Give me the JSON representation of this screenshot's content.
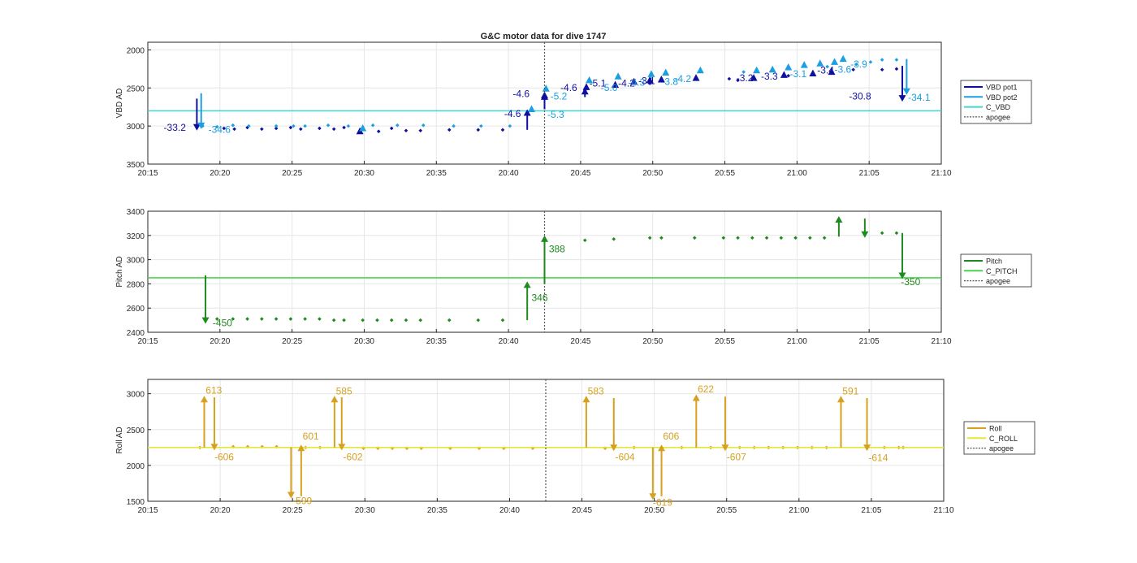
{
  "figure_title": "G&C motor data for dive 1747",
  "colors": {
    "vbd_pot1": "#1010a0",
    "vbd_pot2": "#1a9fe0",
    "c_vbd": "#3fd6d6",
    "pitch": "#1f8a1f",
    "c_pitch": "#4cd44c",
    "roll": "#d6a11e",
    "c_roll": "#e6e63a",
    "apogee": "#555555",
    "grid": "#e6e6e6",
    "axis": "#262626"
  },
  "chart_data": [
    {
      "type": "line",
      "title": "G&C motor data for dive 1747",
      "ylabel": "VBD AD",
      "y_reversed": true,
      "ylim": [
        1900,
        3500
      ],
      "xlim": [
        "20:15",
        "21:10"
      ],
      "y_ticks": [
        2000,
        2500,
        3000,
        3500
      ],
      "x_ticks": [
        "20:15",
        "20:20",
        "20:25",
        "20:30",
        "20:35",
        "20:40",
        "20:45",
        "20:50",
        "20:55",
        "21:00",
        "21:05",
        "21:10"
      ],
      "grid": true,
      "legend_position": "right",
      "legend": [
        "VBD pot1",
        "VBD pot2",
        "C_VBD",
        "apogee"
      ],
      "series": [
        {
          "name": "VBD pot1",
          "x": [
            20.28,
            21.0,
            21.9,
            22.9,
            23.9,
            24.9,
            25.6,
            26.9,
            27.9,
            28.6,
            31.0,
            31.9,
            32.9,
            33.9,
            35.9,
            37.9,
            39.6,
            45.3,
            47.3,
            49.8,
            50.6,
            55.3,
            55.9,
            59.4,
            63.9,
            65.9,
            66.9
          ],
          "y": [
            3030,
            3040,
            3020,
            3040,
            3030,
            3020,
            3040,
            3030,
            3040,
            3020,
            3070,
            3030,
            3060,
            3060,
            3050,
            3050,
            3050,
            2530,
            2480,
            2440,
            2390,
            2380,
            2400,
            2340,
            2260,
            2260,
            2250
          ]
        },
        {
          "name": "VBD pot2",
          "x": [
            18.8,
            19.8,
            20.9,
            22.0,
            23.9,
            25.1,
            25.9,
            27.5,
            28.9,
            30.6,
            32.3,
            34.1,
            36.2,
            38.1,
            40.1,
            56.3,
            62.1,
            64.1,
            65.1,
            65.9,
            66.9
          ],
          "y": [
            3000,
            3010,
            2990,
            3000,
            3000,
            3000,
            3000,
            2990,
            3000,
            2990,
            2990,
            2990,
            3000,
            3000,
            3000,
            2290,
            2220,
            2190,
            2160,
            2130,
            2130
          ]
        },
        {
          "name": "C_VBD",
          "x": [
            15.0,
            70.0
          ],
          "y": [
            2800,
            2800
          ]
        }
      ],
      "triangles_pot1": {
        "x": [
          29.7,
          42.5,
          45.4,
          47.4,
          48.7,
          49.8,
          50.6,
          53.0,
          57.0,
          59.1,
          61.1,
          62.4
        ],
        "y": [
          3070,
          2600,
          2490,
          2460,
          2420,
          2400,
          2390,
          2370,
          2370,
          2330,
          2310,
          2290
        ]
      },
      "triangles_pot2": {
        "x": [
          29.9,
          41.6,
          42.6,
          45.6,
          47.6,
          49.9,
          50.9,
          53.3,
          57.2,
          58.3,
          59.4,
          60.5,
          61.6,
          62.6,
          63.2
        ],
        "y": [
          3030,
          2780,
          2510,
          2400,
          2350,
          2320,
          2300,
          2270,
          2270,
          2260,
          2230,
          2200,
          2180,
          2160,
          2120
        ]
      },
      "arrows": [
        {
          "series": "VBD pot1",
          "x": 18.4,
          "y_from": 2640,
          "y_to": 3060
        },
        {
          "series": "VBD pot2",
          "x": 18.7,
          "y_from": 2570,
          "y_to": 3040
        },
        {
          "series": "VBD pot1",
          "x": 41.3,
          "y_from": 3050,
          "y_to": 2780
        },
        {
          "series": "VBD pot1",
          "x": 42.5,
          "y_from": 2780,
          "y_to": 2570
        },
        {
          "series": "VBD pot1",
          "x": 45.3,
          "y_from": 2620,
          "y_to": 2500
        },
        {
          "series": "VBD pot1",
          "x": 67.3,
          "y_from": 2210,
          "y_to": 2680
        },
        {
          "series": "VBD pot2",
          "x": 67.6,
          "y_from": 2120,
          "y_to": 2590
        }
      ],
      "annotations": [
        {
          "text": "-33.2",
          "series": "VBD pot1",
          "x": 16.1,
          "y": 3060
        },
        {
          "text": "-34.6",
          "series": "VBD pot2",
          "x": 19.2,
          "y": 3090
        },
        {
          "text": "-4.6",
          "series": "VBD pot1",
          "x": 39.7,
          "y": 2880
        },
        {
          "text": "-4.6",
          "series": "VBD pot1",
          "x": 40.3,
          "y": 2620
        },
        {
          "text": "-5.3",
          "series": "VBD pot2",
          "x": 42.7,
          "y": 2890
        },
        {
          "text": "-5.2",
          "series": "VBD pot2",
          "x": 42.9,
          "y": 2650
        },
        {
          "text": "-4.6",
          "series": "VBD pot1",
          "x": 43.6,
          "y": 2540
        },
        {
          "text": "-5.1",
          "series": "VBD pot1",
          "x": 45.6,
          "y": 2480
        },
        {
          "text": "-5.0",
          "series": "VBD pot2",
          "x": 46.4,
          "y": 2540
        },
        {
          "text": "-4.2",
          "series": "VBD pot1",
          "x": 47.6,
          "y": 2480
        },
        {
          "text": "-4.3",
          "series": "VBD pot2",
          "x": 48.3,
          "y": 2470
        },
        {
          "text": "-3.1",
          "series": "VBD pot1",
          "x": 49.0,
          "y": 2450
        },
        {
          "text": "-3.8",
          "series": "VBD pot2",
          "x": 50.6,
          "y": 2460
        },
        {
          "text": "-4.2",
          "series": "VBD pot2",
          "x": 51.5,
          "y": 2420
        },
        {
          "text": "-3.2",
          "series": "VBD pot1",
          "x": 55.8,
          "y": 2410
        },
        {
          "text": "-3.3",
          "series": "VBD pot1",
          "x": 57.5,
          "y": 2390
        },
        {
          "text": "-3.1",
          "series": "VBD pot2",
          "x": 59.5,
          "y": 2360
        },
        {
          "text": "-3.4",
          "series": "VBD pot1",
          "x": 61.4,
          "y": 2310
        },
        {
          "text": "-3.6",
          "series": "VBD pot2",
          "x": 62.6,
          "y": 2300
        },
        {
          "text": "-3.9",
          "series": "VBD pot2",
          "x": 63.7,
          "y": 2230
        },
        {
          "text": "-30.8",
          "series": "VBD pot1",
          "x": 63.6,
          "y": 2650
        },
        {
          "text": "-34.1",
          "series": "VBD pot2",
          "x": 67.7,
          "y": 2670
        }
      ],
      "apogee_x": 42.5
    },
    {
      "type": "line",
      "ylabel": "Pitch AD",
      "ylim": [
        2400,
        3400
      ],
      "xlim": [
        "20:15",
        "21:10"
      ],
      "y_ticks": [
        2400,
        2600,
        2800,
        3000,
        3200,
        3400
      ],
      "x_ticks": [
        "20:15",
        "20:20",
        "20:25",
        "20:30",
        "20:35",
        "20:40",
        "20:45",
        "20:50",
        "20:55",
        "21:00",
        "21:05",
        "21:10"
      ],
      "grid": true,
      "legend_position": "right",
      "legend": [
        "Pitch",
        "C_PITCH",
        "apogee"
      ],
      "series": [
        {
          "name": "Pitch",
          "x": [
            19.8,
            20.9,
            21.9,
            22.9,
            23.9,
            24.9,
            25.9,
            26.9,
            27.9,
            28.6,
            29.9,
            30.9,
            31.9,
            32.9,
            33.9,
            35.9,
            37.9,
            39.6,
            45.3,
            47.3,
            49.8,
            50.6,
            52.9,
            54.9,
            55.9,
            56.9,
            57.9,
            58.9,
            59.9,
            60.9,
            61.9,
            65.9,
            66.9
          ],
          "y": [
            2510,
            2510,
            2510,
            2510,
            2510,
            2510,
            2510,
            2510,
            2500,
            2500,
            2500,
            2500,
            2500,
            2500,
            2500,
            2500,
            2500,
            2500,
            3160,
            3170,
            3180,
            3180,
            3180,
            3180,
            3180,
            3180,
            3180,
            3180,
            3180,
            3180,
            3180,
            3220,
            3220
          ]
        },
        {
          "name": "C_PITCH",
          "x": [
            15.0,
            70.0
          ],
          "y": [
            2850,
            2850
          ]
        }
      ],
      "arrows": [
        {
          "x": 19.0,
          "y_from": 2870,
          "y_to": 2470
        },
        {
          "x": 41.3,
          "y_from": 2500,
          "y_to": 2820
        },
        {
          "x": 42.5,
          "y_from": 2800,
          "y_to": 3200
        },
        {
          "x": 62.9,
          "y_from": 3190,
          "y_to": 3360
        },
        {
          "x": 64.7,
          "y_from": 3340,
          "y_to": 3180
        },
        {
          "x": 67.3,
          "y_from": 3220,
          "y_to": 2840
        }
      ],
      "annotations": [
        {
          "text": "-450",
          "x": 19.5,
          "y": 2450
        },
        {
          "text": "346",
          "x": 41.6,
          "y": 2660
        },
        {
          "text": "388",
          "x": 42.8,
          "y": 3060
        },
        {
          "text": "-350",
          "x": 67.2,
          "y": 2790
        }
      ],
      "apogee_x": 42.5
    },
    {
      "type": "line",
      "ylabel": "Roll AD",
      "ylim": [
        1500,
        3200
      ],
      "xlim": [
        "20:15",
        "21:10"
      ],
      "y_ticks": [
        1500,
        2000,
        2500,
        3000
      ],
      "x_ticks": [
        "20:15",
        "20:20",
        "20:25",
        "20:30",
        "20:35",
        "20:40",
        "20:45",
        "20:50",
        "20:55",
        "21:00",
        "21:05",
        "21:10"
      ],
      "grid": true,
      "legend_position": "right",
      "legend": [
        "Roll",
        "C_ROLL",
        "apogee"
      ],
      "series": [
        {
          "name": "Roll",
          "x": [
            18.6,
            20.9,
            21.9,
            22.9,
            23.9,
            25.9,
            26.9,
            29.9,
            30.9,
            31.9,
            32.9,
            33.9,
            35.9,
            37.9,
            39.6,
            41.6,
            46.6,
            48.6,
            51.9,
            53.9,
            54.9,
            55.9,
            56.9,
            57.9,
            58.9,
            59.9,
            60.9,
            61.9,
            65.9,
            66.9,
            67.2
          ],
          "y": [
            2250,
            2260,
            2260,
            2260,
            2260,
            2250,
            2250,
            2240,
            2240,
            2240,
            2240,
            2240,
            2240,
            2240,
            2240,
            2240,
            2240,
            2250,
            2250,
            2250,
            2250,
            2250,
            2250,
            2250,
            2250,
            2250,
            2250,
            2250,
            2250,
            2250,
            2250
          ]
        },
        {
          "name": "C_ROLL",
          "x": [
            15.0,
            70.0
          ],
          "y": [
            2250,
            2250
          ]
        }
      ],
      "arrows": [
        {
          "x": 18.9,
          "y_from": 2250,
          "y_to": 2970
        },
        {
          "x": 19.6,
          "y_from": 2950,
          "y_to": 2210
        },
        {
          "x": 24.9,
          "y_from": 2250,
          "y_to": 1540
        },
        {
          "x": 25.6,
          "y_from": 1570,
          "y_to": 2290
        },
        {
          "x": 27.9,
          "y_from": 2250,
          "y_to": 2970
        },
        {
          "x": 28.4,
          "y_from": 2950,
          "y_to": 2210
        },
        {
          "x": 45.3,
          "y_from": 2250,
          "y_to": 2970
        },
        {
          "x": 47.2,
          "y_from": 2940,
          "y_to": 2200
        },
        {
          "x": 49.9,
          "y_from": 2250,
          "y_to": 1520
        },
        {
          "x": 50.5,
          "y_from": 1570,
          "y_to": 2290
        },
        {
          "x": 52.9,
          "y_from": 2250,
          "y_to": 2990
        },
        {
          "x": 54.9,
          "y_from": 2960,
          "y_to": 2200
        },
        {
          "x": 62.9,
          "y_from": 2250,
          "y_to": 2970
        },
        {
          "x": 64.7,
          "y_from": 2940,
          "y_to": 2200
        }
      ],
      "annotations": [
        {
          "text": "613",
          "x": 19.0,
          "y": 3000
        },
        {
          "text": "-606",
          "x": 19.6,
          "y": 2070
        },
        {
          "text": "-599",
          "x": 25.0,
          "y": 1460
        },
        {
          "text": "601",
          "x": 25.7,
          "y": 2360
        },
        {
          "text": "585",
          "x": 28.0,
          "y": 2990
        },
        {
          "text": "-602",
          "x": 28.5,
          "y": 2070
        },
        {
          "text": "583",
          "x": 45.4,
          "y": 2990
        },
        {
          "text": "-604",
          "x": 47.3,
          "y": 2070
        },
        {
          "text": "-619",
          "x": 49.9,
          "y": 1440
        },
        {
          "text": "606",
          "x": 50.6,
          "y": 2360
        },
        {
          "text": "622",
          "x": 53.0,
          "y": 3020
        },
        {
          "text": "-607",
          "x": 55.0,
          "y": 2070
        },
        {
          "text": "591",
          "x": 63.0,
          "y": 2990
        },
        {
          "text": "-614",
          "x": 64.8,
          "y": 2060
        }
      ],
      "apogee_x": 42.5
    }
  ]
}
